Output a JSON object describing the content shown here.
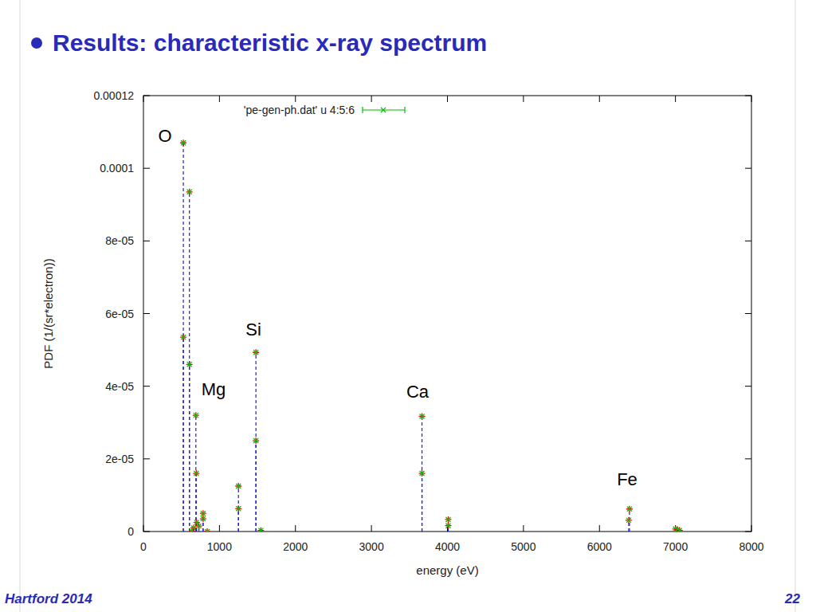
{
  "slide": {
    "title": "Results: characteristic x-ray spectrum",
    "footer": "Hartford 2014",
    "page": "22"
  },
  "chart_data": {
    "type": "scatter",
    "x_label": "energy (eV)",
    "y_label": "PDF (1/(sr*electron))",
    "annotations": [
      "O",
      "Mg",
      "Si",
      "Ca",
      "Fe"
    ],
    "xlim": [
      0,
      8000
    ],
    "xticks": [
      0,
      1000,
      2000,
      3000,
      4000,
      5000,
      6000,
      7000,
      8000
    ],
    "ylim": [
      0,
      0.00012
    ],
    "yticks": [
      0,
      {
        "value": 2e-05,
        "label": "2e-05"
      },
      {
        "value": 4e-05,
        "label": "4e-05"
      },
      {
        "value": 6e-05,
        "label": "6e-05"
      },
      {
        "value": 8e-05,
        "label": "8e-05"
      },
      0.0001,
      0.00012
    ],
    "grid": false,
    "legend": "top",
    "series": [
      {
        "name": "'pe-gen-ph.dat' u 4:5:6",
        "color": "#00c000",
        "marker": "cross",
        "line_style": "dashed",
        "x": [
          525,
          525,
          605,
          605,
          640,
          660,
          690,
          695,
          700,
          730,
          785,
          785,
          840,
          1250,
          1250,
          1480,
          1480,
          1545,
          3665,
          3665,
          4010,
          4010,
          6395,
          6385,
          7000,
          7025,
          7055
        ],
        "values": [
          0.000107,
          5.35e-05,
          9.35e-05,
          4.6e-05,
          0,
          1e-06,
          3.2e-05,
          1.6e-05,
          2.5e-06,
          1.5e-06,
          5e-06,
          3.5e-06,
          0,
          1.25e-05,
          6.3e-06,
          4.93e-05,
          2.5e-05,
          3e-07,
          3.17e-05,
          1.6e-05,
          3.3e-06,
          1.6e-06,
          6.2e-06,
          3.1e-06,
          7e-07,
          5e-07,
          3e-07
        ]
      }
    ]
  }
}
